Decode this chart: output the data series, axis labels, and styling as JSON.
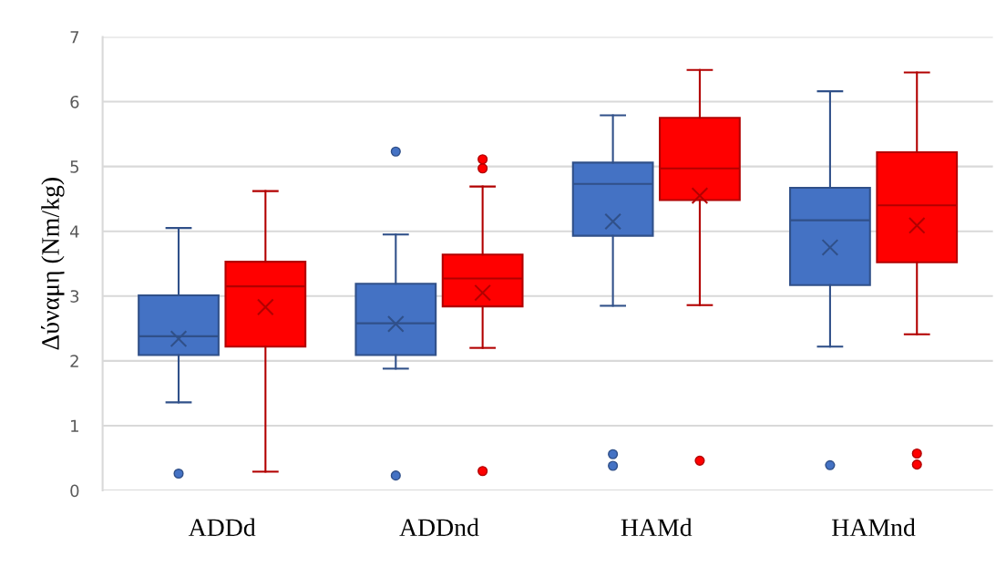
{
  "chart_data": {
    "type": "box",
    "ylabel": "Δύναμη (Nm/kg)",
    "categories": [
      "ADDd",
      "ADDnd",
      "HAMd",
      "HAMnd"
    ],
    "ylim": [
      0,
      7
    ],
    "yticks": [
      0,
      1,
      2,
      3,
      4,
      5,
      6,
      7
    ],
    "grid": "y",
    "marker": "cross",
    "series": [
      {
        "color": "#4472c4",
        "boxes": [
          {
            "low": 1.36,
            "q1": 2.09,
            "median": 2.38,
            "q3": 3.01,
            "high": 4.05,
            "mean": 2.34,
            "outliers": [
              0.26
            ]
          },
          {
            "low": 1.88,
            "q1": 2.09,
            "median": 2.58,
            "q3": 3.19,
            "high": 3.95,
            "mean": 2.57,
            "outliers": [
              5.23,
              0.23
            ]
          },
          {
            "low": 2.85,
            "q1": 3.93,
            "median": 4.73,
            "q3": 5.06,
            "high": 5.79,
            "mean": 4.15,
            "outliers": [
              0.56,
              0.38
            ]
          },
          {
            "low": 2.22,
            "q1": 3.17,
            "median": 4.17,
            "q3": 4.67,
            "high": 6.16,
            "mean": 3.75,
            "outliers": [
              0.39
            ]
          }
        ]
      },
      {
        "color": "#ff0000",
        "boxes": [
          {
            "low": 0.29,
            "q1": 2.22,
            "median": 3.15,
            "q3": 3.53,
            "high": 4.62,
            "mean": 2.83
          },
          {
            "low": 2.2,
            "q1": 2.84,
            "median": 3.27,
            "q3": 3.64,
            "high": 4.69,
            "mean": 3.05,
            "outliers": [
              5.11,
              4.97,
              0.3
            ]
          },
          {
            "low": 2.86,
            "q1": 4.48,
            "median": 4.97,
            "q3": 5.75,
            "high": 6.49,
            "mean": 4.55,
            "outliers": [
              0.46
            ]
          },
          {
            "low": 2.41,
            "q1": 3.52,
            "median": 4.4,
            "q3": 5.22,
            "high": 6.45,
            "mean": 4.09,
            "outliers": [
              0.57,
              0.4
            ]
          }
        ]
      }
    ]
  }
}
